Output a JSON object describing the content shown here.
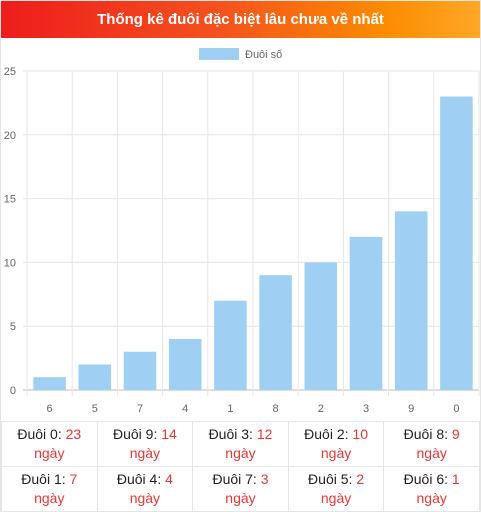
{
  "header": {
    "title": "Thống kê đuôi đặc biệt lâu chưa về nhất"
  },
  "chart_data": {
    "type": "bar",
    "categories": [
      "6",
      "5",
      "7",
      "4",
      "1",
      "8",
      "2",
      "3",
      "9",
      "0"
    ],
    "series": [
      {
        "name": "Đuôi số",
        "values": [
          1,
          2,
          3,
          4,
          7,
          9,
          10,
          12,
          14,
          23
        ]
      }
    ],
    "ylim": [
      0,
      25
    ],
    "yticks": [
      "0",
      "5",
      "10",
      "15",
      "20",
      "25"
    ],
    "grid": true,
    "legend": "top-center",
    "bar_color": "#9fd0f3"
  },
  "stats": [
    [
      {
        "label": "Đuôi 0:",
        "value": "23",
        "unit": "ngày"
      },
      {
        "label": "Đuôi 9:",
        "value": "14",
        "unit": "ngày"
      },
      {
        "label": "Đuôi 3:",
        "value": "12",
        "unit": "ngày"
      },
      {
        "label": "Đuôi 2:",
        "value": "10",
        "unit": "ngày"
      },
      {
        "label": "Đuôi 8:",
        "value": "9",
        "unit": "ngày"
      }
    ],
    [
      {
        "label": "Đuôi 1:",
        "value": "7",
        "unit": "ngày"
      },
      {
        "label": "Đuôi 4:",
        "value": "4",
        "unit": "ngày"
      },
      {
        "label": "Đuôi 7:",
        "value": "3",
        "unit": "ngày"
      },
      {
        "label": "Đuôi 5:",
        "value": "2",
        "unit": "ngày"
      },
      {
        "label": "Đuôi 6:",
        "value": "1",
        "unit": "ngày"
      }
    ]
  ],
  "colors": {
    "accent": "#e53935",
    "header_start": "#ee1c1c",
    "header_end": "#ffa726"
  }
}
